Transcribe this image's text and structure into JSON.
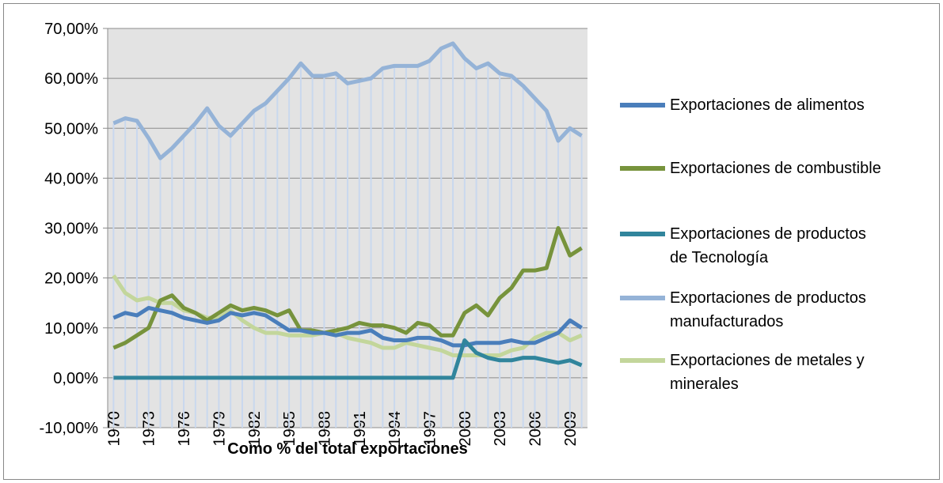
{
  "chart_data": {
    "type": "line",
    "x_label": "Como % del total exportaciones",
    "x": [
      1970,
      1971,
      1972,
      1973,
      1974,
      1975,
      1976,
      1977,
      1978,
      1979,
      1980,
      1981,
      1982,
      1983,
      1984,
      1985,
      1986,
      1987,
      1988,
      1989,
      1990,
      1991,
      1992,
      1993,
      1994,
      1995,
      1996,
      1997,
      1998,
      1999,
      2000,
      2001,
      2002,
      2003,
      2004,
      2005,
      2006,
      2007,
      2008,
      2009,
      2010
    ],
    "xlim": [
      1970,
      2010
    ],
    "xticks": [
      1970,
      1973,
      1976,
      1979,
      1982,
      1985,
      1988,
      1991,
      1994,
      1997,
      2000,
      2003,
      2006,
      2009
    ],
    "ylim": [
      -10,
      70
    ],
    "yticks": [
      {
        "value": -10,
        "label": "-10,00%"
      },
      {
        "value": 0,
        "label": "0,00%"
      },
      {
        "value": 10,
        "label": "10,00%"
      },
      {
        "value": 20,
        "label": "20,00%"
      },
      {
        "value": 30,
        "label": "30,00%"
      },
      {
        "value": 40,
        "label": "40,00%"
      },
      {
        "value": 50,
        "label": "50,00%"
      },
      {
        "value": 60,
        "label": "60,00%"
      },
      {
        "value": 70,
        "label": "70,00%"
      }
    ],
    "grid": true,
    "drop_lines_series": 3,
    "legend": "right",
    "series": [
      {
        "name": "Exportaciones de alimentos",
        "color": "#4a7ebb",
        "values": [
          12,
          13,
          12.5,
          14,
          13.5,
          13,
          12,
          11.5,
          11,
          11.5,
          13,
          12.5,
          13,
          12.5,
          11,
          9.5,
          9.5,
          9,
          9,
          8.5,
          9,
          9,
          9.5,
          8,
          7.5,
          7.5,
          8,
          8,
          7.5,
          6.5,
          6.5,
          7,
          7,
          7,
          7.5,
          7,
          7,
          8,
          9,
          11.5,
          10
        ]
      },
      {
        "name": "Exportaciones de combustible",
        "color": "#77933c",
        "values": [
          6,
          7,
          8.5,
          10,
          15.5,
          16.5,
          14,
          13,
          11.5,
          13,
          14.5,
          13.5,
          14,
          13.5,
          12.5,
          13.5,
          9.5,
          9.5,
          9,
          9.5,
          10,
          11,
          10.5,
          10.5,
          10,
          9,
          11,
          10.5,
          8.5,
          8.5,
          13,
          14.5,
          12.5,
          16,
          18,
          21.5,
          21.5,
          22,
          30,
          24.5,
          26
        ]
      },
      {
        "name": "Exportaciones de productos de Tecnología",
        "color": "#31859c",
        "values": [
          0,
          0,
          0,
          0,
          0,
          0,
          0,
          0,
          0,
          0,
          0,
          0,
          0,
          0,
          0,
          0,
          0,
          0,
          0,
          0,
          0,
          0,
          0,
          0,
          0,
          0,
          0,
          0,
          0,
          0,
          7.5,
          5,
          4,
          3.5,
          3.5,
          4,
          4,
          3.5,
          3,
          3.5,
          2.5
        ]
      },
      {
        "name": "Exportaciones de productos manufacturados",
        "color": "#95b3d7",
        "values": [
          51,
          52,
          51.5,
          48,
          44,
          46,
          48.5,
          51,
          54,
          50.5,
          48.5,
          51,
          53.5,
          55,
          57.5,
          60,
          63,
          60.5,
          60.5,
          61,
          59,
          59.5,
          60,
          62,
          62.5,
          62.5,
          62.5,
          63.5,
          66,
          67,
          64,
          62,
          63,
          61,
          60.5,
          58.5,
          56,
          53.5,
          47.5,
          50,
          48.5
        ]
      },
      {
        "name": "Exportaciones de metales y minerales",
        "color": "#c3d69b",
        "values": [
          20.5,
          17,
          15.5,
          16,
          15,
          15,
          13.5,
          13,
          12,
          12,
          13.5,
          11.5,
          10,
          9,
          9,
          8.5,
          8.5,
          8.5,
          9,
          9,
          8,
          7.5,
          7,
          6,
          6,
          7,
          6.5,
          6,
          5.5,
          4.5,
          4.5,
          4.5,
          4.5,
          4.5,
          5.5,
          6,
          8,
          9,
          9,
          7.5,
          8.5
        ]
      }
    ]
  }
}
